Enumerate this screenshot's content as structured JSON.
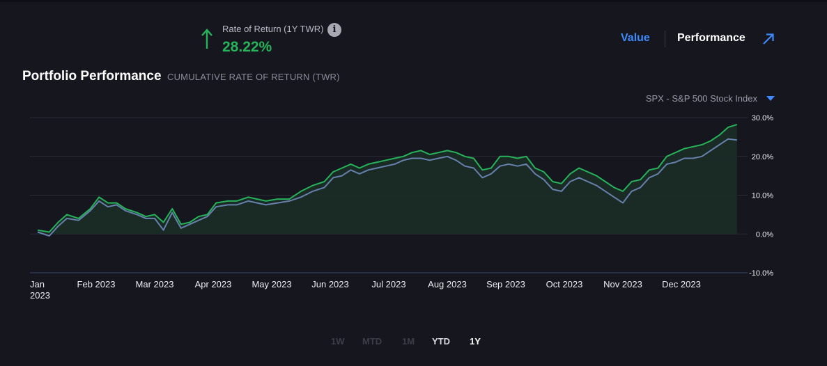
{
  "header": {
    "ror_label": "Rate of Return (1Y TWR)",
    "ror_value": "28.22%",
    "ror_direction_icon": "arrow-up-icon",
    "info_icon": "info-icon",
    "toggle_value": "Value",
    "toggle_performance": "Performance",
    "expand_icon": "external-arrow-icon"
  },
  "panel": {
    "title": "Portfolio Performance",
    "subtitle": "CUMULATIVE RATE OF RETURN (TWR)",
    "benchmark_select": "SPX - S&P 500 Stock Index",
    "benchmark_caret_icon": "caret-down-icon"
  },
  "periods": [
    {
      "label": "1W",
      "state": "disabled"
    },
    {
      "label": "MTD",
      "state": "disabled"
    },
    {
      "label": "1M",
      "state": "disabled"
    },
    {
      "label": "YTD",
      "state": "enabled"
    },
    {
      "label": "1Y",
      "state": "selected"
    }
  ],
  "colors": {
    "portfolio": "#27b35a",
    "benchmark": "#6681ac",
    "area_fill": "#1a2b26",
    "grid": "#2b2b36",
    "label": "#ececf0",
    "accent": "#3d8bfd"
  },
  "chart_data": {
    "type": "line",
    "title": "Portfolio Performance",
    "subtitle": "CUMULATIVE RATE OF RETURN (TWR)",
    "x_ticks": [
      {
        "month": 0,
        "label": "Jan",
        "label2": "2023"
      },
      {
        "month": 1,
        "label": "Feb 2023"
      },
      {
        "month": 2,
        "label": "Mar 2023"
      },
      {
        "month": 3,
        "label": "Apr 2023"
      },
      {
        "month": 4,
        "label": "May 2023"
      },
      {
        "month": 5,
        "label": "Jun 2023"
      },
      {
        "month": 6,
        "label": "Jul 2023"
      },
      {
        "month": 7,
        "label": "Aug 2023"
      },
      {
        "month": 8,
        "label": "Sep 2023"
      },
      {
        "month": 9,
        "label": "Oct 2023"
      },
      {
        "month": 10,
        "label": "Nov 2023"
      },
      {
        "month": 11,
        "label": "Dec 2023"
      }
    ],
    "xlim": [
      0,
      11.95
    ],
    "y_ticks": [
      30,
      20,
      10,
      0,
      -10
    ],
    "y_tick_labels": [
      "30.0%",
      "20.0%",
      "10.0%",
      "0.0%",
      "-10.0%"
    ],
    "ylim": [
      -10,
      30
    ],
    "grid": true,
    "legend": "none",
    "series": [
      {
        "key": "portfolio",
        "color": "#27b35a",
        "filled": true,
        "x": [
          0,
          0.2,
          0.35,
          0.5,
          0.7,
          0.9,
          1.05,
          1.2,
          1.35,
          1.5,
          1.7,
          1.85,
          2.0,
          2.15,
          2.3,
          2.45,
          2.6,
          2.75,
          2.9,
          3.05,
          3.25,
          3.4,
          3.6,
          3.75,
          3.9,
          4.1,
          4.3,
          4.5,
          4.7,
          4.9,
          5.05,
          5.2,
          5.35,
          5.5,
          5.65,
          5.8,
          5.95,
          6.1,
          6.25,
          6.4,
          6.55,
          6.7,
          6.85,
          7.0,
          7.15,
          7.3,
          7.45,
          7.6,
          7.75,
          7.9,
          8.05,
          8.2,
          8.35,
          8.5,
          8.65,
          8.8,
          8.95,
          9.1,
          9.25,
          9.4,
          9.55,
          9.7,
          9.85,
          10.0,
          10.15,
          10.3,
          10.45,
          10.6,
          10.75,
          10.9,
          11.05,
          11.2,
          11.35,
          11.5,
          11.65,
          11.8,
          11.95
        ],
        "y": [
          1.0,
          0.5,
          3.0,
          5.0,
          4.0,
          6.5,
          9.5,
          8.0,
          8.0,
          6.5,
          5.5,
          4.5,
          5.0,
          3.0,
          6.5,
          2.5,
          3.0,
          4.5,
          5.0,
          8.0,
          8.5,
          8.5,
          9.5,
          9.0,
          8.5,
          9.0,
          9.0,
          11.0,
          12.5,
          13.5,
          16.0,
          17.0,
          18.0,
          17.0,
          18.0,
          18.5,
          19.0,
          19.5,
          20.0,
          21.0,
          21.5,
          20.5,
          21.0,
          21.5,
          21.0,
          20.0,
          19.5,
          16.5,
          17.0,
          20.0,
          20.0,
          19.5,
          20.0,
          17.0,
          16.0,
          13.5,
          13.0,
          15.5,
          17.0,
          16.0,
          15.0,
          13.5,
          12.0,
          11.0,
          13.5,
          14.0,
          16.5,
          17.0,
          20.0,
          21.0,
          22.0,
          22.5,
          23.0,
          24.0,
          25.5,
          27.5,
          28.22
        ]
      },
      {
        "key": "benchmark",
        "color": "#6681ac",
        "filled": false,
        "x": [
          0,
          0.2,
          0.35,
          0.5,
          0.7,
          0.9,
          1.05,
          1.2,
          1.35,
          1.5,
          1.7,
          1.85,
          2.0,
          2.15,
          2.3,
          2.45,
          2.6,
          2.75,
          2.9,
          3.05,
          3.25,
          3.4,
          3.6,
          3.75,
          3.9,
          4.1,
          4.3,
          4.5,
          4.7,
          4.9,
          5.05,
          5.2,
          5.35,
          5.5,
          5.65,
          5.8,
          5.95,
          6.1,
          6.25,
          6.4,
          6.55,
          6.7,
          6.85,
          7.0,
          7.15,
          7.3,
          7.45,
          7.6,
          7.75,
          7.9,
          8.05,
          8.2,
          8.35,
          8.5,
          8.65,
          8.8,
          8.95,
          9.1,
          9.25,
          9.4,
          9.55,
          9.7,
          9.85,
          10.0,
          10.15,
          10.3,
          10.45,
          10.6,
          10.75,
          10.9,
          11.05,
          11.2,
          11.35,
          11.5,
          11.65,
          11.8,
          11.95
        ],
        "y": [
          0.5,
          -0.5,
          2.0,
          4.0,
          3.5,
          6.0,
          8.5,
          7.0,
          7.5,
          6.0,
          5.0,
          4.0,
          4.0,
          1.0,
          5.5,
          1.5,
          2.5,
          3.5,
          4.5,
          7.0,
          7.5,
          7.5,
          8.5,
          8.0,
          7.5,
          8.0,
          8.5,
          9.5,
          11.0,
          12.0,
          14.5,
          15.0,
          16.5,
          15.5,
          16.5,
          17.0,
          17.5,
          18.0,
          19.0,
          19.5,
          19.5,
          19.0,
          19.5,
          20.0,
          19.0,
          17.5,
          17.0,
          14.5,
          15.5,
          17.5,
          18.0,
          17.5,
          18.0,
          15.5,
          14.0,
          11.5,
          11.0,
          13.5,
          14.5,
          13.5,
          12.5,
          11.0,
          9.5,
          8.0,
          11.0,
          12.0,
          14.5,
          15.5,
          18.0,
          18.5,
          19.5,
          19.5,
          20.0,
          21.5,
          23.0,
          24.5,
          24.2
        ]
      }
    ]
  }
}
